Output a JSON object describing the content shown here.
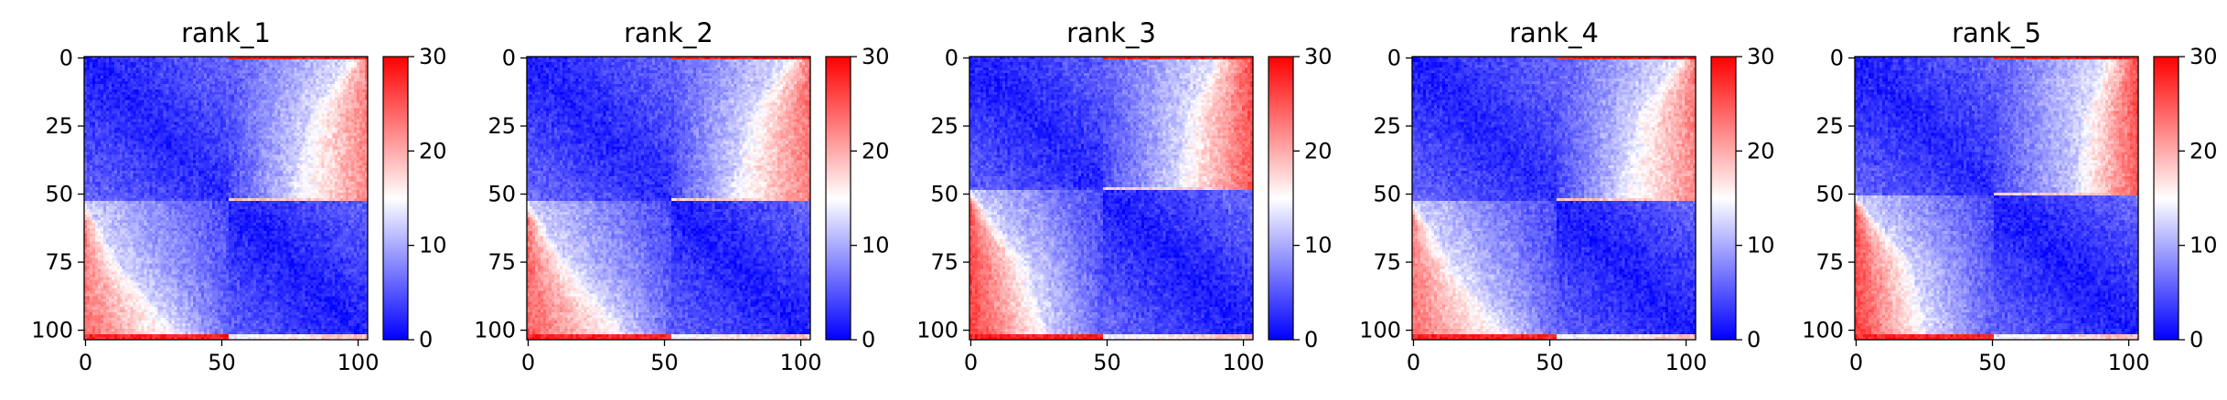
{
  "chart_data": [
    {
      "type": "heatmap",
      "title": "rank_1",
      "n": 104,
      "split": 53,
      "upper_right_curve": [
        [
          0,
          98
        ],
        [
          20,
          83
        ],
        [
          53,
          74
        ]
      ],
      "lower_left_curve": [
        [
          53,
          0
        ],
        [
          75,
          12
        ],
        [
          103,
          34
        ]
      ],
      "off_diag_far_value": 22,
      "edge_value": 28,
      "x_ticks": [
        0,
        50,
        100
      ],
      "y_ticks": [
        0,
        25,
        50,
        75,
        100
      ],
      "colorbar": {
        "min": 0,
        "max": 30,
        "ticks": [
          0,
          10,
          20,
          30
        ],
        "colors": [
          "#0000ff",
          "#ffffff",
          "#ff0000"
        ]
      }
    },
    {
      "type": "heatmap",
      "title": "rank_2",
      "n": 104,
      "split": 53,
      "upper_right_curve": [
        [
          0,
          97
        ],
        [
          20,
          82
        ],
        [
          53,
          73
        ]
      ],
      "lower_left_curve": [
        [
          53,
          0
        ],
        [
          75,
          14
        ],
        [
          103,
          36
        ]
      ],
      "off_diag_far_value": 23,
      "edge_value": 28,
      "x_ticks": [
        0,
        50,
        100
      ],
      "y_ticks": [
        0,
        25,
        50,
        75,
        100
      ],
      "colorbar": {
        "min": 0,
        "max": 30,
        "ticks": [
          0,
          10,
          20,
          30
        ],
        "colors": [
          "#0000ff",
          "#ffffff",
          "#ff0000"
        ]
      }
    },
    {
      "type": "heatmap",
      "title": "rank_3",
      "n": 104,
      "split": 49,
      "upper_right_curve": [
        [
          0,
          90
        ],
        [
          20,
          80
        ],
        [
          49,
          74
        ]
      ],
      "lower_left_curve": [
        [
          49,
          0
        ],
        [
          75,
          20
        ],
        [
          103,
          28
        ]
      ],
      "off_diag_far_value": 25,
      "edge_value": 28,
      "x_ticks": [
        0,
        50,
        100
      ],
      "y_ticks": [
        0,
        25,
        50,
        75,
        100
      ],
      "colorbar": {
        "min": 0,
        "max": 30,
        "ticks": [
          0,
          10,
          20,
          30
        ],
        "colors": [
          "#0000ff",
          "#ffffff",
          "#ff0000"
        ]
      }
    },
    {
      "type": "heatmap",
      "title": "rank_4",
      "n": 104,
      "split": 53,
      "upper_right_curve": [
        [
          0,
          98
        ],
        [
          20,
          83
        ],
        [
          53,
          74
        ]
      ],
      "lower_left_curve": [
        [
          53,
          0
        ],
        [
          75,
          14
        ],
        [
          103,
          34
        ]
      ],
      "off_diag_far_value": 22,
      "edge_value": 28,
      "x_ticks": [
        0,
        50,
        100
      ],
      "y_ticks": [
        0,
        25,
        50,
        75,
        100
      ],
      "colorbar": {
        "min": 0,
        "max": 30,
        "ticks": [
          0,
          10,
          20,
          30
        ],
        "colors": [
          "#0000ff",
          "#ffffff",
          "#ff0000"
        ]
      }
    },
    {
      "type": "heatmap",
      "title": "rank_5",
      "n": 104,
      "split": 51,
      "upper_right_curve": [
        [
          0,
          92
        ],
        [
          20,
          84
        ],
        [
          51,
          80
        ]
      ],
      "lower_left_curve": [
        [
          51,
          0
        ],
        [
          75,
          20
        ],
        [
          103,
          26
        ]
      ],
      "off_diag_far_value": 25,
      "edge_value": 28,
      "x_ticks": [
        0,
        50,
        100
      ],
      "y_ticks": [
        0,
        25,
        50,
        75,
        100
      ],
      "colorbar": {
        "min": 0,
        "max": 30,
        "ticks": [
          0,
          10,
          20,
          30
        ],
        "colors": [
          "#0000ff",
          "#ffffff",
          "#ff0000"
        ]
      }
    }
  ]
}
